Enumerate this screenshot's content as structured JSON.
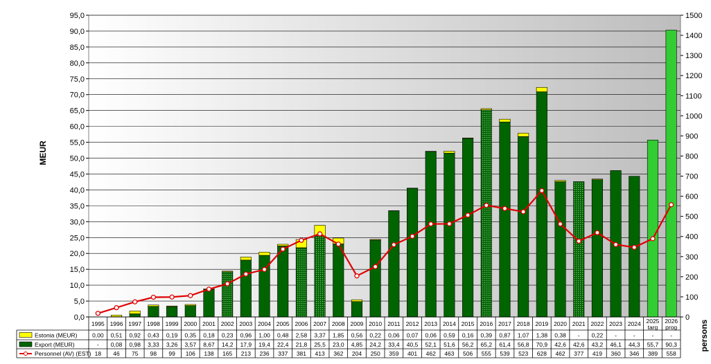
{
  "chart_data": {
    "type": "bar",
    "title": "",
    "xlabel": "",
    "ylabel": "MEUR",
    "y2label": "persons",
    "ylim": [
      0,
      95
    ],
    "y2lim": [
      0,
      1500
    ],
    "yticks": [
      "0,0",
      "5,0",
      "10,0",
      "15,0",
      "20,0",
      "25,0",
      "30,0",
      "35,0",
      "40,0",
      "45,0",
      "50,0",
      "55,0",
      "60,0",
      "65,0",
      "70,0",
      "75,0",
      "80,0",
      "85,0",
      "90,0",
      "95,0"
    ],
    "y2ticks": [
      "0",
      "100",
      "200",
      "300",
      "400",
      "500",
      "600",
      "700",
      "800",
      "900",
      "1000",
      "1100",
      "1200",
      "1300",
      "1400",
      "1500"
    ],
    "categories": [
      "1995",
      "1996",
      "1997",
      "1998",
      "1999",
      "2000",
      "2001",
      "2002",
      "2003",
      "2004",
      "2005",
      "2006",
      "2007",
      "2008",
      "2009",
      "2010",
      "2011",
      "2012",
      "2013",
      "2014",
      "2015",
      "2016",
      "2017",
      "2018",
      "2019",
      "2020",
      "2021",
      "2022",
      "2023",
      "2024",
      "2025 targ",
      "2026 prog"
    ],
    "grid": true,
    "legend": "table-bottom-left",
    "series": [
      {
        "name": "Estonia (MEUR)",
        "type": "stacked-bar",
        "color": "#ffff00",
        "values": [
          0.0,
          0.51,
          0.92,
          0.43,
          0.19,
          0.35,
          0.18,
          0.23,
          0.96,
          1.0,
          0.48,
          2.58,
          3.37,
          1.85,
          0.56,
          0.22,
          0.06,
          0.07,
          0.06,
          0.59,
          0.16,
          0.39,
          0.87,
          1.07,
          1.38,
          0.38,
          null,
          0.22,
          null,
          null,
          null,
          null
        ],
        "labels": [
          "0,00",
          "0,51",
          "0,92",
          "0,43",
          "0,19",
          "0,35",
          "0,18",
          "0,23",
          "0,96",
          "1,00",
          "0,48",
          "2,58",
          "3,37",
          "1,85",
          "0,56",
          "0,22",
          "0,06",
          "0,07",
          "0,06",
          "0,59",
          "0,16",
          "0,39",
          "0,87",
          "1,07",
          "1,38",
          "0,38",
          "-",
          "0,22",
          "-",
          "-",
          "-",
          "-"
        ]
      },
      {
        "name": "Export (MEUR)",
        "type": "stacked-bar",
        "color": "#006400",
        "values": [
          null,
          0.08,
          0.98,
          3.33,
          3.26,
          3.57,
          8.67,
          14.2,
          17.9,
          19.4,
          22.4,
          21.8,
          25.5,
          23.0,
          4.85,
          24.2,
          33.4,
          40.5,
          52.1,
          51.6,
          56.2,
          65.2,
          61.4,
          56.8,
          70.9,
          42.6,
          42.6,
          43.2,
          46.1,
          44.3,
          55.7,
          90.3
        ],
        "labels": [
          "-",
          "0,08",
          "0,98",
          "3,33",
          "3,26",
          "3,57",
          "8,67",
          "14,2",
          "17,9",
          "19,4",
          "22,4",
          "21,8",
          "25,5",
          "23,0",
          "4,85",
          "24,2",
          "33,4",
          "40,5",
          "52,1",
          "51,6",
          "56,2",
          "65,2",
          "61,4",
          "56,8",
          "70,9",
          "42,6",
          "42,6",
          "43,2",
          "46,1",
          "44,3",
          "55,7",
          "90,3"
        ]
      },
      {
        "name": "Personnel (AV) (EST)",
        "type": "line",
        "axis": "right",
        "color": "#e00000",
        "values": [
          18,
          46,
          75,
          98,
          99,
          106,
          138,
          165,
          213,
          236,
          337,
          381,
          413,
          362,
          204,
          250,
          359,
          401,
          462,
          463,
          506,
          555,
          539,
          523,
          628,
          462,
          377,
          419,
          360,
          346,
          389,
          558
        ],
        "labels": [
          "18",
          "46",
          "75",
          "98",
          "99",
          "106",
          "138",
          "165",
          "213",
          "236",
          "337",
          "381",
          "413",
          "362",
          "204",
          "250",
          "359",
          "401",
          "462",
          "463",
          "506",
          "555",
          "539",
          "523",
          "628",
          "462",
          "377",
          "419",
          "360",
          "346",
          "389",
          "558"
        ]
      }
    ],
    "dotted_bar_years": [
      "2002",
      "2006",
      "2007",
      "2016",
      "2021"
    ],
    "bright_bar_years": [
      "2025 targ",
      "2026 prog"
    ]
  }
}
